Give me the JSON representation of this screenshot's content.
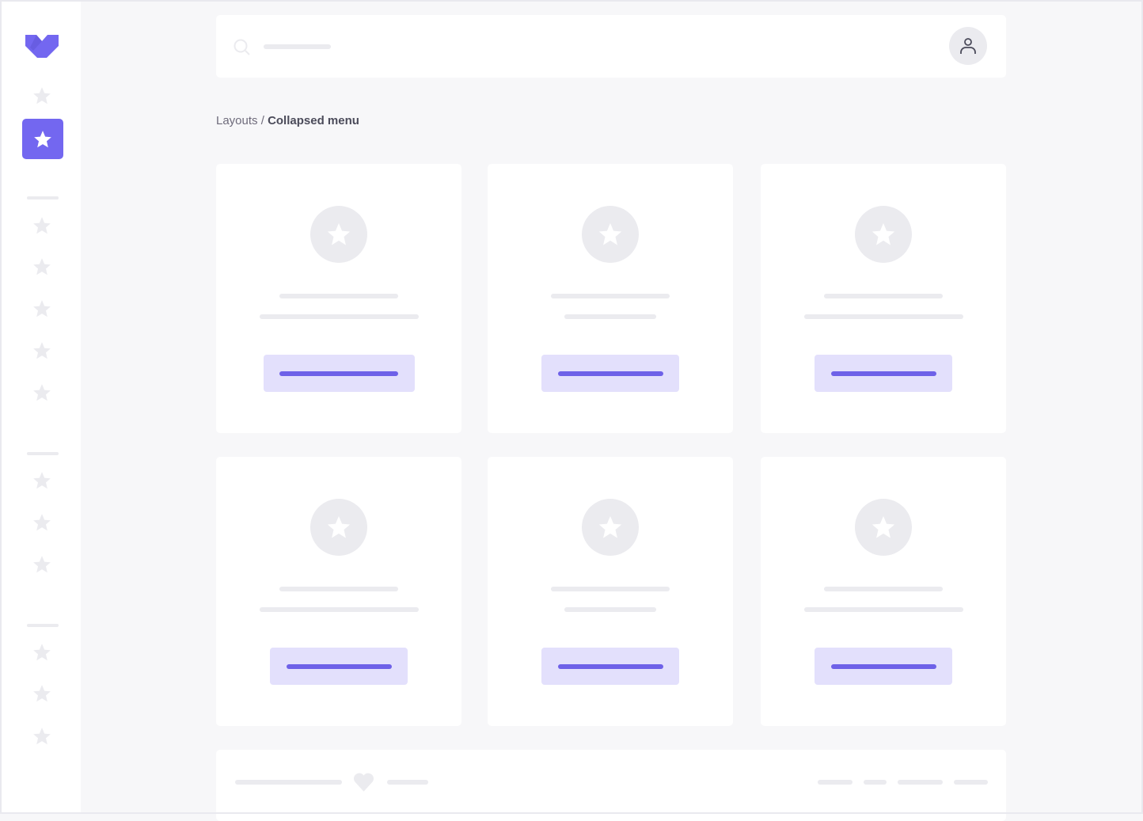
{
  "brand": {
    "logo_icon": "chevron-heart-logo",
    "color": "#7367f0"
  },
  "breadcrumb": {
    "parent": "Layouts",
    "separator": " / ",
    "current": "Collapsed menu"
  },
  "sidebar": {
    "active_index": 1,
    "item_icon": "star-icon"
  },
  "topbar": {
    "search_icon": "search-icon",
    "user_icon": "user-icon"
  },
  "cards": [
    {
      "icon": "star-icon"
    },
    {
      "icon": "star-icon"
    },
    {
      "icon": "star-icon"
    },
    {
      "icon": "star-icon"
    },
    {
      "icon": "star-icon"
    },
    {
      "icon": "star-icon"
    }
  ],
  "footer": {
    "icon": "heart-icon"
  },
  "colors": {
    "accent": "#7367f0",
    "accent_light": "#e3e0fc",
    "placeholder": "#ebebef",
    "background": "#f7f7f9"
  }
}
